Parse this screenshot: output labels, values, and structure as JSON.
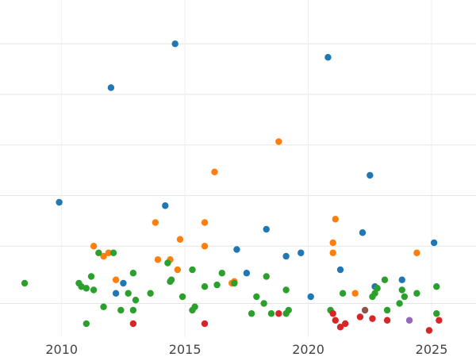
{
  "chart_data": {
    "type": "scatter",
    "title": "",
    "xlabel": "",
    "ylabel": "",
    "xlim": [
      2007.5,
      2026.8
    ],
    "ylim": [
      0,
      1.0
    ],
    "x_ticks": [
      2010,
      2015,
      2020,
      2025
    ],
    "x_tick_labels": [
      "2010",
      "2015",
      "2020",
      "2025"
    ],
    "y_gridlines": [
      0.1,
      0.27,
      0.42,
      0.57,
      0.72,
      0.87
    ],
    "y_tick_labels": [],
    "grid": true,
    "legend": "none",
    "series": [
      {
        "color": "#1f77b4",
        "points": [
          [
            2009.9,
            0.4
          ],
          [
            2012.0,
            0.74
          ],
          [
            2012.2,
            0.13
          ],
          [
            2012.5,
            0.16
          ],
          [
            2014.2,
            0.39
          ],
          [
            2014.6,
            0.87
          ],
          [
            2017.1,
            0.26
          ],
          [
            2017.5,
            0.19
          ],
          [
            2018.3,
            0.32
          ],
          [
            2019.1,
            0.24
          ],
          [
            2019.7,
            0.25
          ],
          [
            2020.1,
            0.12
          ],
          [
            2020.8,
            0.83
          ],
          [
            2021.3,
            0.2
          ],
          [
            2022.2,
            0.31
          ],
          [
            2022.5,
            0.48
          ],
          [
            2022.7,
            0.15
          ],
          [
            2023.8,
            0.17
          ],
          [
            2025.1,
            0.28
          ]
        ]
      },
      {
        "color": "#ff7f0e",
        "points": [
          [
            2011.3,
            0.27
          ],
          [
            2011.7,
            0.24
          ],
          [
            2011.9,
            0.25
          ],
          [
            2012.2,
            0.17
          ],
          [
            2013.8,
            0.34
          ],
          [
            2013.9,
            0.23
          ],
          [
            2014.4,
            0.23
          ],
          [
            2014.7,
            0.2
          ],
          [
            2014.8,
            0.29
          ],
          [
            2015.8,
            0.27
          ],
          [
            2015.8,
            0.34
          ],
          [
            2016.2,
            0.49
          ],
          [
            2016.9,
            0.16
          ],
          [
            2017.0,
            0.165
          ],
          [
            2018.8,
            0.58
          ],
          [
            2021.0,
            0.28
          ],
          [
            2021.0,
            0.25
          ],
          [
            2021.1,
            0.35
          ],
          [
            2021.9,
            0.13
          ],
          [
            2024.4,
            0.25
          ]
        ]
      },
      {
        "color": "#2ca02c",
        "points": [
          [
            2008.5,
            0.16
          ],
          [
            2010.7,
            0.16
          ],
          [
            2010.8,
            0.15
          ],
          [
            2011.0,
            0.145
          ],
          [
            2011.2,
            0.18
          ],
          [
            2011.3,
            0.14
          ],
          [
            2011.5,
            0.25
          ],
          [
            2011.7,
            0.09
          ],
          [
            2012.1,
            0.25
          ],
          [
            2012.4,
            0.08
          ],
          [
            2012.7,
            0.13
          ],
          [
            2012.9,
            0.19
          ],
          [
            2012.9,
            0.08
          ],
          [
            2013.0,
            0.11
          ],
          [
            2013.6,
            0.13
          ],
          [
            2014.3,
            0.22
          ],
          [
            2014.4,
            0.165
          ],
          [
            2014.45,
            0.17
          ],
          [
            2014.9,
            0.12
          ],
          [
            2015.3,
            0.2
          ],
          [
            2015.3,
            0.08
          ],
          [
            2015.4,
            0.09
          ],
          [
            2015.8,
            0.15
          ],
          [
            2016.3,
            0.155
          ],
          [
            2016.5,
            0.19
          ],
          [
            2017.0,
            0.16
          ],
          [
            2017.7,
            0.07
          ],
          [
            2017.9,
            0.12
          ],
          [
            2018.2,
            0.1
          ],
          [
            2018.3,
            0.18
          ],
          [
            2018.5,
            0.07
          ],
          [
            2019.1,
            0.07
          ],
          [
            2019.1,
            0.14
          ],
          [
            2019.2,
            0.08
          ],
          [
            2020.9,
            0.08
          ],
          [
            2021.4,
            0.13
          ],
          [
            2022.6,
            0.12
          ],
          [
            2022.7,
            0.13
          ],
          [
            2022.8,
            0.145
          ],
          [
            2023.1,
            0.17
          ],
          [
            2023.2,
            0.08
          ],
          [
            2023.7,
            0.1
          ],
          [
            2023.8,
            0.14
          ],
          [
            2023.9,
            0.12
          ],
          [
            2024.4,
            0.13
          ],
          [
            2025.2,
            0.15
          ],
          [
            2025.2,
            0.07
          ],
          [
            2011.0,
            0.04
          ]
        ]
      },
      {
        "color": "#d62728",
        "points": [
          [
            2012.9,
            0.04
          ],
          [
            2015.8,
            0.04
          ],
          [
            2018.8,
            0.07
          ],
          [
            2021.0,
            0.07
          ],
          [
            2021.1,
            0.05
          ],
          [
            2021.3,
            0.03
          ],
          [
            2021.5,
            0.04
          ],
          [
            2022.1,
            0.06
          ],
          [
            2022.6,
            0.055
          ],
          [
            2023.2,
            0.05
          ],
          [
            2024.9,
            0.02
          ],
          [
            2025.3,
            0.05
          ]
        ]
      },
      {
        "color": "#8c564b",
        "points": [
          [
            2022.3,
            0.08
          ]
        ]
      },
      {
        "color": "#9467bd",
        "points": [
          [
            2024.1,
            0.05
          ]
        ]
      }
    ]
  }
}
